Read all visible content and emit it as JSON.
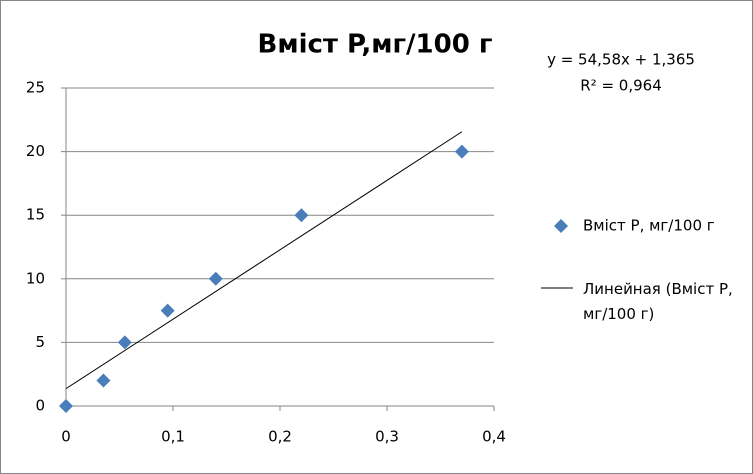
{
  "chart_data": {
    "type": "scatter",
    "title": "Вміст P,мг/100 г",
    "series": [
      {
        "name": "Вміст P, мг/100 г",
        "color": "#4a7ebb",
        "x": [
          0,
          0.035,
          0.055,
          0.095,
          0.14,
          0.22,
          0.37
        ],
        "values": [
          0,
          2,
          5,
          7.5,
          10,
          15,
          20
        ]
      }
    ],
    "trendline": {
      "name": "Линейная (Вміст P, мг/100 г)",
      "color": "#000000",
      "slope": 54.58,
      "intercept": 1.365,
      "equation": "y = 54,58x + 1,365",
      "r_squared": "R² = 0,964"
    },
    "xlim": [
      0,
      0.4
    ],
    "xticks": [
      0,
      {
        "value": 0.1,
        "label": "0,1"
      },
      {
        "value": 0.2,
        "label": "0,2"
      },
      {
        "value": 0.3,
        "label": "0,3"
      },
      {
        "value": 0.4,
        "label": "0,4"
      }
    ],
    "ylim": [
      0,
      25
    ],
    "yticks": [
      0,
      5,
      10,
      15,
      20,
      25
    ],
    "grid": true,
    "legend": "right"
  }
}
